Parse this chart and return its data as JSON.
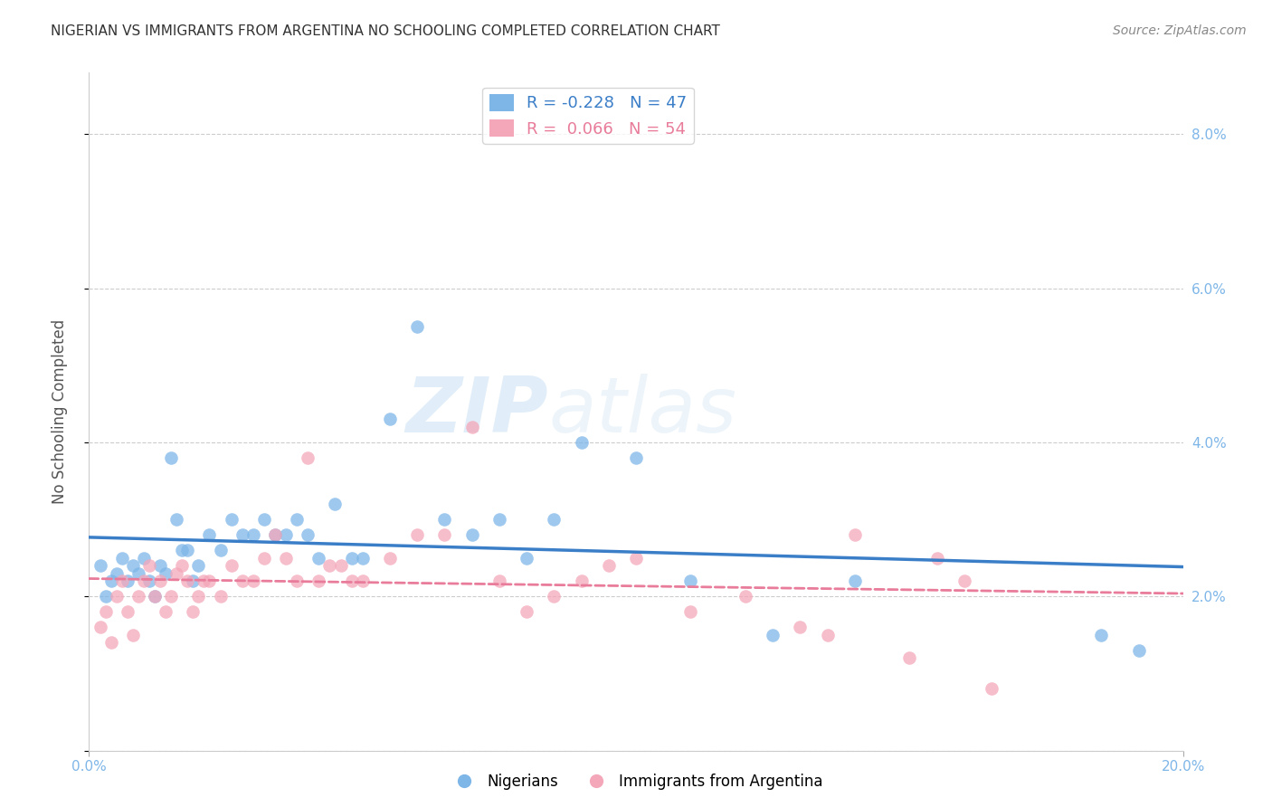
{
  "title": "NIGERIAN VS IMMIGRANTS FROM ARGENTINA NO SCHOOLING COMPLETED CORRELATION CHART",
  "source": "Source: ZipAtlas.com",
  "ylabel": "No Schooling Completed",
  "xlim": [
    0.0,
    0.2
  ],
  "ylim": [
    0.0,
    0.088
  ],
  "xticks": [
    0.0,
    0.2
  ],
  "xtick_labels": [
    "0.0%",
    "20.0%"
  ],
  "yticks": [
    0.0,
    0.02,
    0.04,
    0.06,
    0.08
  ],
  "ytick_labels_left": [
    "",
    "",
    "",
    "",
    ""
  ],
  "ytick_labels_right": [
    "",
    "2.0%",
    "4.0%",
    "6.0%",
    "8.0%"
  ],
  "background_color": "#ffffff",
  "grid_color": "#cccccc",
  "blue_color": "#7EB6E8",
  "pink_color": "#F4A7B9",
  "blue_line_color": "#3B7EC8",
  "pink_line_color": "#E87C9A",
  "R_blue": -0.228,
  "N_blue": 47,
  "R_pink": 0.066,
  "N_pink": 54,
  "legend_label_blue": "Nigerians",
  "legend_label_pink": "Immigrants from Argentina",
  "title_color": "#333333",
  "axis_color": "#7EB6E8",
  "watermark_zip": "ZIP",
  "watermark_atlas": "atlas",
  "blue_scatter_x": [
    0.002,
    0.003,
    0.004,
    0.005,
    0.006,
    0.007,
    0.008,
    0.009,
    0.01,
    0.011,
    0.012,
    0.013,
    0.014,
    0.015,
    0.016,
    0.017,
    0.018,
    0.019,
    0.02,
    0.022,
    0.024,
    0.026,
    0.028,
    0.03,
    0.032,
    0.034,
    0.036,
    0.038,
    0.04,
    0.042,
    0.045,
    0.048,
    0.05,
    0.055,
    0.06,
    0.065,
    0.07,
    0.075,
    0.08,
    0.085,
    0.09,
    0.1,
    0.11,
    0.125,
    0.14,
    0.185,
    0.192
  ],
  "blue_scatter_y": [
    0.024,
    0.02,
    0.022,
    0.023,
    0.025,
    0.022,
    0.024,
    0.023,
    0.025,
    0.022,
    0.02,
    0.024,
    0.023,
    0.038,
    0.03,
    0.026,
    0.026,
    0.022,
    0.024,
    0.028,
    0.026,
    0.03,
    0.028,
    0.028,
    0.03,
    0.028,
    0.028,
    0.03,
    0.028,
    0.025,
    0.032,
    0.025,
    0.025,
    0.043,
    0.055,
    0.03,
    0.028,
    0.03,
    0.025,
    0.03,
    0.04,
    0.038,
    0.022,
    0.015,
    0.022,
    0.015,
    0.013
  ],
  "pink_scatter_x": [
    0.002,
    0.003,
    0.004,
    0.005,
    0.006,
    0.007,
    0.008,
    0.009,
    0.01,
    0.011,
    0.012,
    0.013,
    0.014,
    0.015,
    0.016,
    0.017,
    0.018,
    0.019,
    0.02,
    0.021,
    0.022,
    0.024,
    0.026,
    0.028,
    0.03,
    0.032,
    0.034,
    0.036,
    0.038,
    0.04,
    0.042,
    0.044,
    0.046,
    0.048,
    0.05,
    0.055,
    0.06,
    0.065,
    0.07,
    0.075,
    0.08,
    0.085,
    0.09,
    0.095,
    0.1,
    0.11,
    0.12,
    0.13,
    0.135,
    0.14,
    0.15,
    0.155,
    0.16,
    0.165
  ],
  "pink_scatter_y": [
    0.016,
    0.018,
    0.014,
    0.02,
    0.022,
    0.018,
    0.015,
    0.02,
    0.022,
    0.024,
    0.02,
    0.022,
    0.018,
    0.02,
    0.023,
    0.024,
    0.022,
    0.018,
    0.02,
    0.022,
    0.022,
    0.02,
    0.024,
    0.022,
    0.022,
    0.025,
    0.028,
    0.025,
    0.022,
    0.038,
    0.022,
    0.024,
    0.024,
    0.022,
    0.022,
    0.025,
    0.028,
    0.028,
    0.042,
    0.022,
    0.018,
    0.02,
    0.022,
    0.024,
    0.025,
    0.018,
    0.02,
    0.016,
    0.015,
    0.028,
    0.012,
    0.025,
    0.022,
    0.008
  ]
}
